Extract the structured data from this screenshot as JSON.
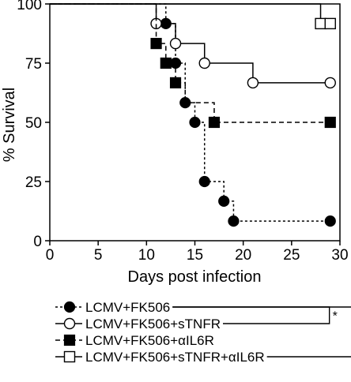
{
  "chart_data": {
    "type": "line",
    "subtype": "step (Kaplan-Meier survival curve)",
    "xlabel": "Days post infection",
    "ylabel": "% Survival",
    "xlim": [
      0,
      30
    ],
    "ylim": [
      0,
      100
    ],
    "x_ticks": [
      "0",
      "5",
      "10",
      "15",
      "20",
      "25",
      "30"
    ],
    "y_ticks": [
      "0",
      "25",
      "50",
      "75",
      "100"
    ],
    "grid": false,
    "legend_position": "bottom",
    "series": [
      {
        "name": "LCMV+FK506",
        "line_style": "dotted",
        "marker": "filled-circle",
        "x": [
          0,
          12,
          13,
          14,
          15,
          16,
          18,
          19
        ],
        "y": [
          100,
          91.7,
          75,
          58.3,
          50,
          25,
          16.7,
          8.3
        ],
        "markers_x": [
          12,
          13,
          14,
          15,
          16,
          18,
          19,
          29
        ],
        "markers_y": [
          91.7,
          75,
          58.3,
          50,
          25,
          16.7,
          8.3,
          8.3
        ],
        "end_x": 29
      },
      {
        "name": "LCMV+FK506+sTNFR",
        "line_style": "solid",
        "marker": "open-circle",
        "x": [
          0,
          11,
          13,
          16,
          21
        ],
        "y": [
          100,
          91.7,
          83.3,
          75,
          66.7
        ],
        "markers_x": [
          11,
          13,
          16,
          21,
          29
        ],
        "markers_y": [
          91.7,
          83.3,
          75,
          66.7,
          66.7
        ],
        "end_x": 29
      },
      {
        "name": "LCMV+FK506+αIL6R",
        "line_style": "dashed",
        "marker": "filled-square",
        "x": [
          0,
          11,
          12,
          13,
          14,
          17
        ],
        "y": [
          100,
          83.3,
          75,
          66.7,
          58.3,
          50
        ],
        "markers_x": [
          11,
          12,
          13,
          17,
          29
        ],
        "markers_y": [
          83.3,
          75,
          66.7,
          50,
          50
        ],
        "end_x": 29
      },
      {
        "name": "LCMV+FK506+sTNFR+αIL6R",
        "line_style": "solid",
        "marker": "open-square",
        "x": [
          0,
          28
        ],
        "y": [
          100,
          91.7
        ],
        "markers_x": [
          28,
          29
        ],
        "markers_y": [
          91.7,
          91.7
        ],
        "end_x": 29
      }
    ],
    "significance": [
      {
        "between": [
          0,
          1
        ],
        "label": "*"
      },
      {
        "between": [
          0,
          3
        ],
        "label": "**"
      }
    ]
  }
}
